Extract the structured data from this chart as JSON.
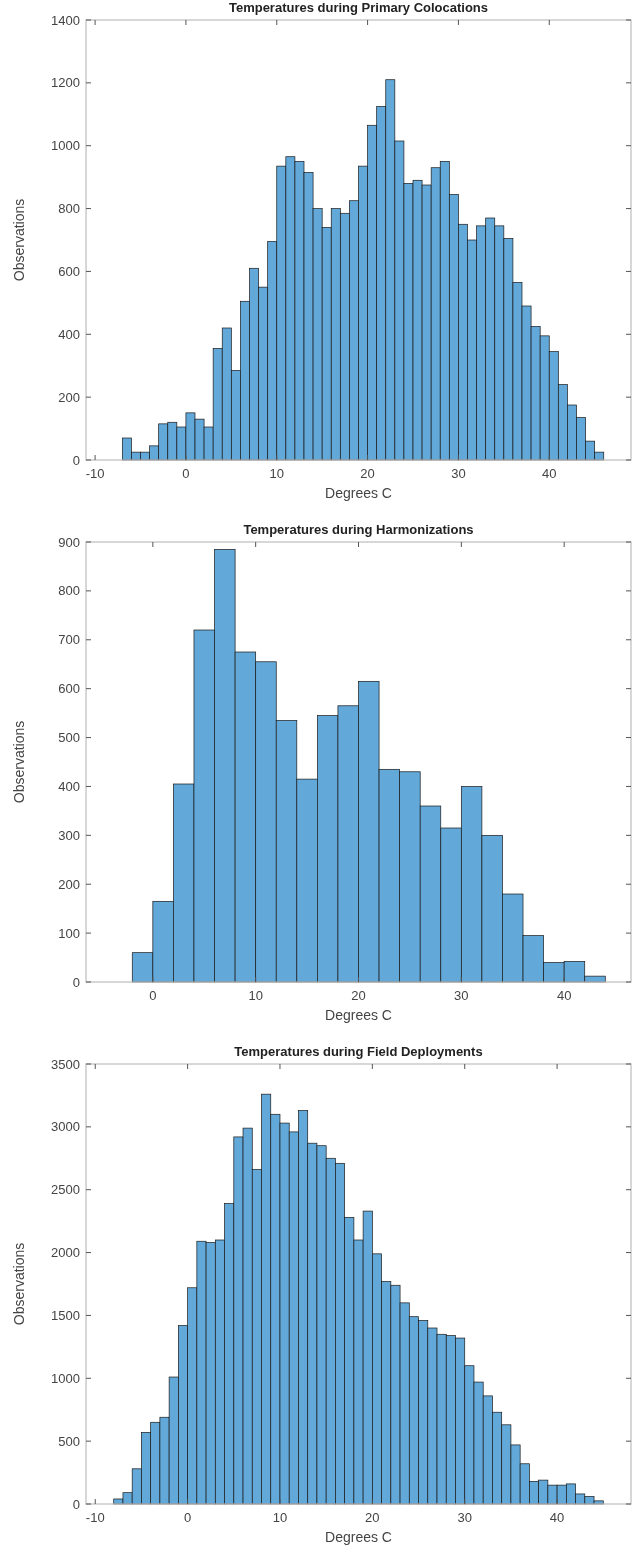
{
  "chart_data": [
    {
      "type": "histogram",
      "title": "Temperatures during Primary Colocations",
      "xlabel": "Degrees C",
      "ylabel": "Observations",
      "color": "#62a8d9",
      "bins": [
        -7,
        -6,
        -5,
        -4,
        -3,
        -2,
        -1,
        0,
        1,
        2,
        3,
        4,
        5,
        6,
        7,
        8,
        9,
        10,
        11,
        12,
        13,
        14,
        15,
        16,
        17,
        18,
        19,
        20,
        21,
        22,
        23,
        24,
        25,
        26,
        27,
        28,
        29,
        30,
        31,
        32,
        33,
        34,
        35,
        36,
        37,
        38,
        39,
        40,
        41,
        42,
        43,
        44,
        45,
        46
      ],
      "values": [
        70,
        25,
        25,
        45,
        115,
        120,
        105,
        150,
        130,
        105,
        355,
        420,
        285,
        505,
        610,
        550,
        695,
        935,
        965,
        950,
        915,
        800,
        740,
        800,
        785,
        825,
        935,
        1065,
        1125,
        1210,
        1015,
        880,
        890,
        875,
        930,
        950,
        845,
        750,
        700,
        745,
        770,
        745,
        705,
        565,
        490,
        425,
        395,
        345,
        240,
        175,
        135,
        60,
        25
      ],
      "xlim": [
        -11,
        49
      ],
      "xticks": [
        -10,
        0,
        10,
        20,
        30,
        40
      ],
      "ylim": [
        0,
        1400
      ],
      "yticks": [
        0,
        200,
        400,
        600,
        800,
        1000,
        1200,
        1400
      ]
    },
    {
      "type": "histogram",
      "title": "Temperatures during Harmonizations",
      "xlabel": "Degrees C",
      "ylabel": "Observations",
      "color": "#62a8d9",
      "bins": [
        -2,
        0,
        2,
        4,
        6,
        8,
        10,
        12,
        14,
        16,
        18,
        20,
        22,
        24,
        26,
        28,
        30,
        32,
        34,
        36,
        38,
        40,
        42,
        44
      ],
      "values": [
        60,
        165,
        405,
        720,
        885,
        675,
        655,
        535,
        415,
        545,
        565,
        615,
        435,
        430,
        360,
        315,
        400,
        300,
        180,
        95,
        40,
        42,
        12
      ],
      "xlim": [
        -6.5,
        46.5
      ],
      "xticks": [
        0,
        10,
        20,
        30,
        40
      ],
      "ylim": [
        0,
        900
      ],
      "yticks": [
        0,
        100,
        200,
        300,
        400,
        500,
        600,
        700,
        800,
        900
      ]
    },
    {
      "type": "histogram",
      "title": "Temperatures during Field Deployments",
      "xlabel": "Degrees C",
      "ylabel": "Observations",
      "color": "#62a8d9",
      "bins": [
        -8,
        -7,
        -6,
        -5,
        -4,
        -3,
        -2,
        -1,
        0,
        1,
        2,
        3,
        4,
        5,
        6,
        7,
        8,
        9,
        10,
        11,
        12,
        13,
        14,
        15,
        16,
        17,
        18,
        19,
        20,
        21,
        22,
        23,
        24,
        25,
        26,
        27,
        28,
        29,
        30,
        31,
        32,
        33,
        34,
        35,
        36,
        37,
        38,
        39,
        40,
        41,
        42,
        43,
        44,
        45
      ],
      "values": [
        40,
        90,
        280,
        570,
        650,
        690,
        1010,
        1420,
        1720,
        2090,
        2080,
        2100,
        2390,
        2920,
        2990,
        2660,
        3260,
        3100,
        3030,
        2960,
        3130,
        2870,
        2850,
        2750,
        2710,
        2280,
        2100,
        2330,
        1990,
        1770,
        1740,
        1600,
        1490,
        1460,
        1400,
        1350,
        1340,
        1320,
        1100,
        970,
        860,
        730,
        630,
        470,
        320,
        180,
        190,
        150,
        150,
        160,
        80,
        60,
        25
      ],
      "xlim": [
        -11,
        48
      ],
      "xticks": [
        -10,
        0,
        10,
        20,
        30,
        40
      ],
      "ylim": [
        0,
        3500
      ],
      "yticks": [
        0,
        500,
        1000,
        1500,
        2000,
        2500,
        3000,
        3500
      ]
    }
  ]
}
